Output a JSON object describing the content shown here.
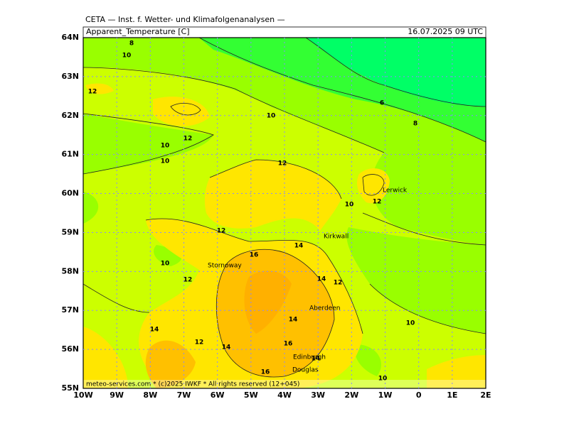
{
  "header": "CETA — Inst. f. Wetter- und Klimafolgenanalysen —",
  "map": {
    "title": "Apparent_Temperature [C]",
    "valid_time": "16.07.2025 09 UTC",
    "footer": "meteo-services.com * (c)2025 IWKF * All rights reserved (12+045)",
    "xlim": [
      -10,
      2
    ],
    "ylim": [
      55,
      64
    ],
    "xticks": [
      {
        "value": -10,
        "label": "10W"
      },
      {
        "value": -9,
        "label": "9W"
      },
      {
        "value": -8,
        "label": "8W"
      },
      {
        "value": -7,
        "label": "7W"
      },
      {
        "value": -6,
        "label": "6W"
      },
      {
        "value": -5,
        "label": "5W"
      },
      {
        "value": -4,
        "label": "4W"
      },
      {
        "value": -3,
        "label": "3W"
      },
      {
        "value": -2,
        "label": "2W"
      },
      {
        "value": -1,
        "label": "1W"
      },
      0,
      {
        "value": 1,
        "label": "1E"
      },
      {
        "value": 2,
        "label": "2E"
      }
    ],
    "yticks": [
      {
        "value": 55,
        "label": "55N"
      },
      {
        "value": 56,
        "label": "56N"
      },
      {
        "value": 57,
        "label": "57N"
      },
      {
        "value": 58,
        "label": "58N"
      },
      {
        "value": 59,
        "label": "59N"
      },
      {
        "value": 60,
        "label": "60N"
      },
      {
        "value": 61,
        "label": "61N"
      },
      {
        "value": 62,
        "label": "62N"
      },
      {
        "value": 63,
        "label": "63N"
      },
      {
        "value": 64,
        "label": "64N"
      }
    ],
    "grid": true,
    "contour_labels": [
      8,
      10,
      12,
      10,
      6,
      8,
      12,
      10,
      10,
      12,
      12,
      10,
      12,
      14,
      16,
      10,
      12,
      14,
      12,
      14,
      10,
      14,
      12,
      14,
      16,
      14,
      16,
      10
    ],
    "places": [
      "Lerwick",
      "Kirkwall",
      "Stornoway",
      "Aberdeen",
      "Edinburgh",
      "Douglas"
    ]
  }
}
